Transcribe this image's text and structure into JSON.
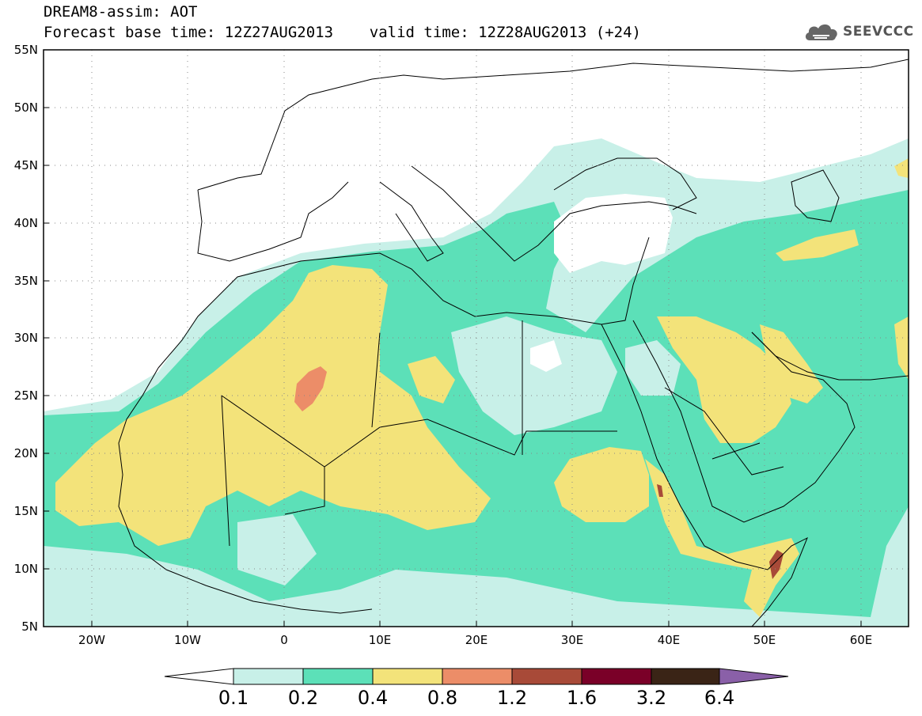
{
  "header": {
    "title": "DREAM8-assim: AOT",
    "base_time_line": "Forecast base time: 12Z27AUG2013    valid time: 12Z28AUG2013 (+24)"
  },
  "logo": {
    "text": "SEEVCCC",
    "icon": "cloud-icon",
    "color": "#555555"
  },
  "map": {
    "lat_labels": [
      "55N",
      "50N",
      "45N",
      "40N",
      "35N",
      "30N",
      "25N",
      "20N",
      "15N",
      "10N",
      "5N"
    ],
    "lon_labels": [
      "20W",
      "10W",
      "0",
      "10E",
      "20E",
      "30E",
      "40E",
      "50E",
      "60E"
    ]
  },
  "colorbar": {
    "colors": [
      "#c8f0e8",
      "#5ce0b8",
      "#f3e37a",
      "#ec8d68",
      "#a84a38",
      "#7a0028",
      "#3a2416",
      "#8a60a8"
    ],
    "labels": [
      "0.1",
      "0.2",
      "0.4",
      "0.8",
      "1.2",
      "1.6",
      "3.2",
      "6.4"
    ]
  }
}
